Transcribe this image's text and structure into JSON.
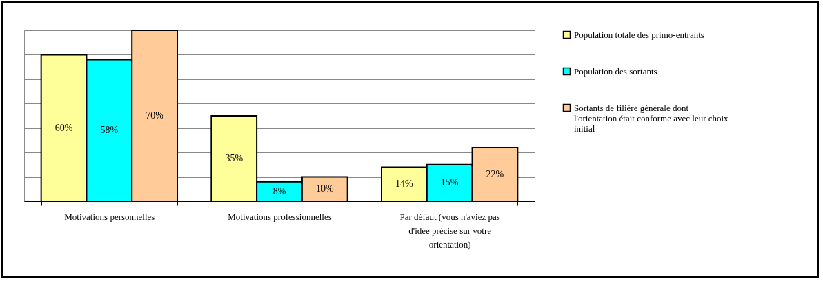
{
  "chart_data": {
    "type": "bar",
    "categories": [
      "Motivations personnelles",
      "Motivations professionnelles",
      "Par défaut (vous n'aviez pas d'idée précise sur votre orientation)"
    ],
    "series": [
      {
        "name": "Population totale des primo-entrants",
        "color": "#ffff99",
        "values": [
          60,
          35,
          14
        ],
        "value_labels": [
          "60%",
          "35%",
          "14%"
        ]
      },
      {
        "name": "Population des sortants",
        "color": "#00ffff",
        "values": [
          58,
          8,
          15
        ],
        "value_labels": [
          "58%",
          "8%",
          "15%"
        ]
      },
      {
        "name": "Sortants de filière générale dont l'orientation était conforme avec leur choix initial",
        "color": "#ffcc99",
        "values": [
          70,
          10,
          22
        ],
        "value_labels": [
          "70%",
          "10%",
          "22%"
        ]
      }
    ],
    "grid": "y",
    "legend": "right",
    "tick_labels": "x"
  }
}
